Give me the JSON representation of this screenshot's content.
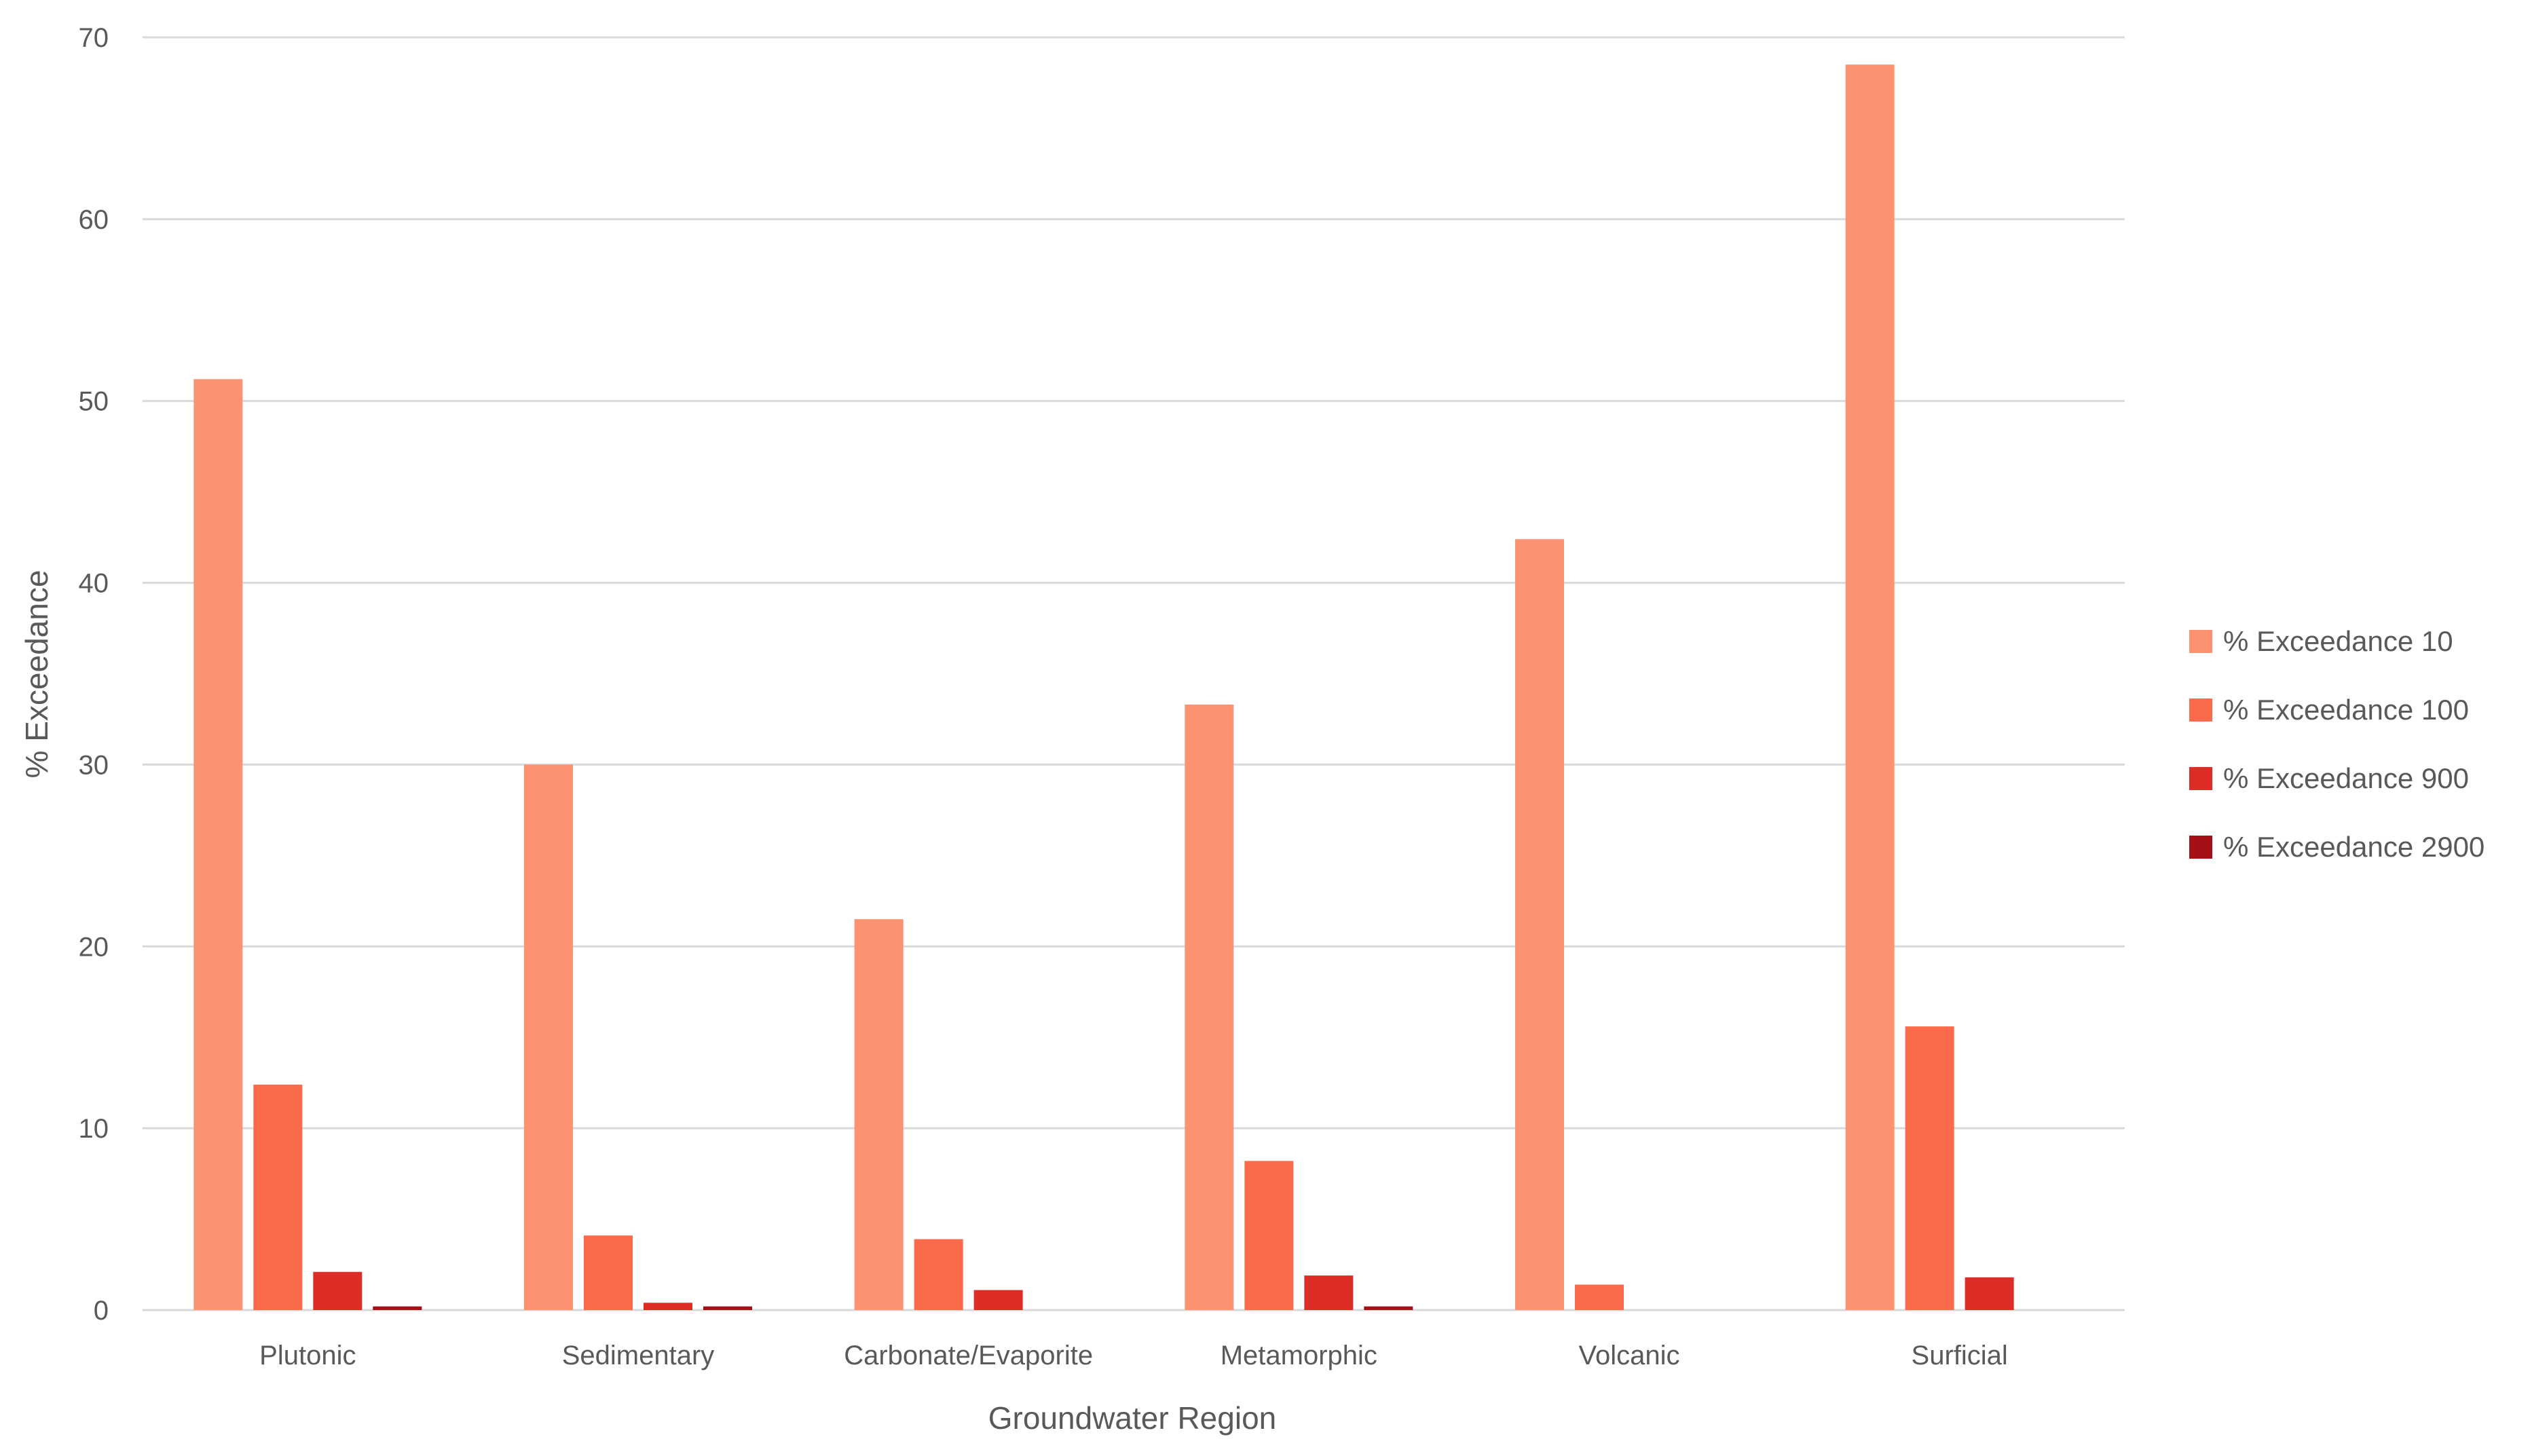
{
  "chart_data": {
    "type": "bar",
    "title": "",
    "xlabel": "Groundwater Region",
    "ylabel": "% Exceedance",
    "ylim": [
      0,
      70
    ],
    "yticks": [
      0,
      10,
      20,
      30,
      40,
      50,
      60,
      70
    ],
    "grid": true,
    "legend_position": "right",
    "categories": [
      "Plutonic",
      "Sedimentary",
      "Carbonate/Evaporite",
      "Metamorphic",
      "Volcanic",
      "Surficial"
    ],
    "series": [
      {
        "name": "% Exceedance 10",
        "color": "#fc9272",
        "values": [
          51.2,
          30.0,
          21.5,
          33.3,
          42.4,
          68.5
        ]
      },
      {
        "name": "% Exceedance 100",
        "color": "#fb6a4a",
        "values": [
          12.4,
          4.1,
          3.9,
          8.2,
          1.4,
          15.6
        ]
      },
      {
        "name": "% Exceedance 900",
        "color": "#de2d26",
        "values": [
          2.1,
          0.4,
          1.1,
          1.9,
          0,
          1.8
        ]
      },
      {
        "name": "% Exceedance 2900",
        "color": "#a50f15",
        "values": [
          0.2,
          0.2,
          0,
          0.2,
          0,
          0
        ]
      }
    ]
  }
}
